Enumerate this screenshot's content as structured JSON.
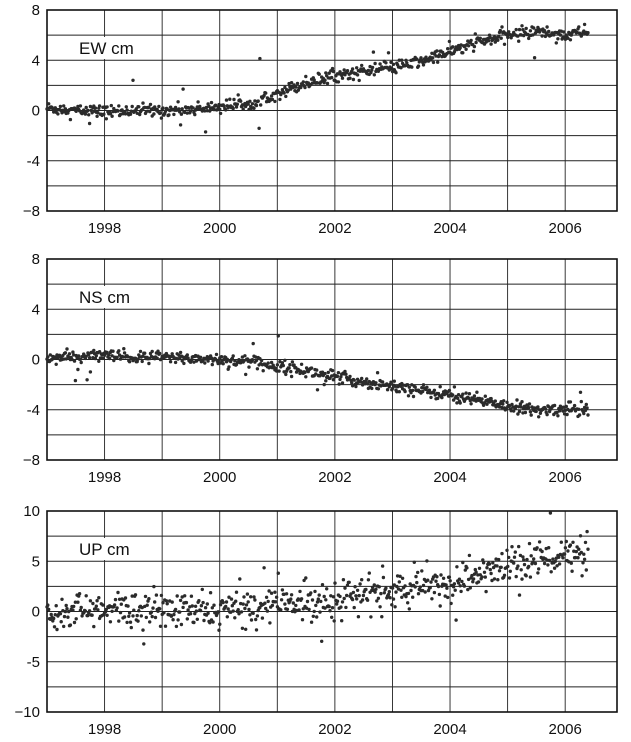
{
  "chart_data": [
    {
      "type": "scatter",
      "label": "EW cm",
      "xlim": [
        1997.0,
        2006.9
      ],
      "ylim": [
        -8,
        8
      ],
      "x_ticks": [
        1998,
        2000,
        2002,
        2004,
        2006
      ],
      "y_ticks": [
        -8,
        -4,
        0,
        4,
        8
      ],
      "y_tick_labels": [
        "−8",
        "-4",
        "0",
        "4",
        "8"
      ],
      "grid": true,
      "series": [
        {
          "x": [
            1997.0,
            1997.5,
            1998.0,
            1998.5,
            1999.0,
            1999.5,
            2000.0,
            2000.5,
            2001.0,
            2001.5,
            2002.0,
            2002.5,
            2003.0,
            2003.5,
            2004.0,
            2004.5,
            2005.0,
            2005.5,
            2006.0,
            2006.4
          ],
          "y": [
            0.2,
            0.0,
            -0.1,
            0.0,
            0.0,
            0.1,
            0.3,
            0.6,
            1.4,
            2.2,
            2.8,
            3.1,
            3.4,
            3.9,
            4.7,
            5.4,
            6.0,
            6.3,
            6.0,
            6.3
          ]
        }
      ]
    },
    {
      "type": "scatter",
      "label": "NS cm",
      "xlim": [
        1997.0,
        2006.9
      ],
      "ylim": [
        -8,
        8
      ],
      "x_ticks": [
        1998,
        2000,
        2002,
        2004,
        2006
      ],
      "y_ticks": [
        -8,
        -4,
        0,
        4,
        8
      ],
      "y_tick_labels": [
        "−8",
        "-4",
        "0",
        "4",
        "8"
      ],
      "grid": true,
      "series": [
        {
          "x": [
            1997.0,
            1997.5,
            1998.0,
            1998.5,
            1999.0,
            1999.5,
            2000.0,
            2000.5,
            2001.0,
            2001.5,
            2002.0,
            2002.5,
            2003.0,
            2003.5,
            2004.0,
            2004.5,
            2005.0,
            2005.5,
            2006.0,
            2006.4
          ],
          "y": [
            0.1,
            0.2,
            0.3,
            0.1,
            0.2,
            0.1,
            0.0,
            -0.2,
            -0.5,
            -0.9,
            -1.4,
            -1.8,
            -2.1,
            -2.5,
            -2.8,
            -3.2,
            -3.7,
            -4.1,
            -3.9,
            -4.0
          ]
        }
      ]
    },
    {
      "type": "scatter",
      "label": "UP cm",
      "xlim": [
        1997.0,
        2006.9
      ],
      "ylim": [
        -10,
        10
      ],
      "x_ticks": [
        1998,
        2000,
        2002,
        2004,
        2006
      ],
      "y_ticks": [
        -10,
        -5,
        0,
        5,
        10
      ],
      "y_tick_labels": [
        "−10",
        "-5",
        "0",
        "5",
        "10"
      ],
      "grid": true,
      "series": [
        {
          "x": [
            1997.0,
            1997.5,
            1998.0,
            1998.5,
            1999.0,
            1999.5,
            2000.0,
            2000.5,
            2001.0,
            2001.5,
            2002.0,
            2002.5,
            2003.0,
            2003.5,
            2004.0,
            2004.5,
            2005.0,
            2005.5,
            2006.0,
            2006.4
          ],
          "y": [
            0.0,
            0.1,
            0.0,
            0.2,
            0.1,
            0.0,
            0.1,
            0.4,
            0.8,
            1.0,
            1.3,
            1.7,
            2.0,
            2.3,
            2.8,
            3.6,
            4.6,
            5.2,
            5.6,
            5.5
          ]
        }
      ]
    }
  ]
}
